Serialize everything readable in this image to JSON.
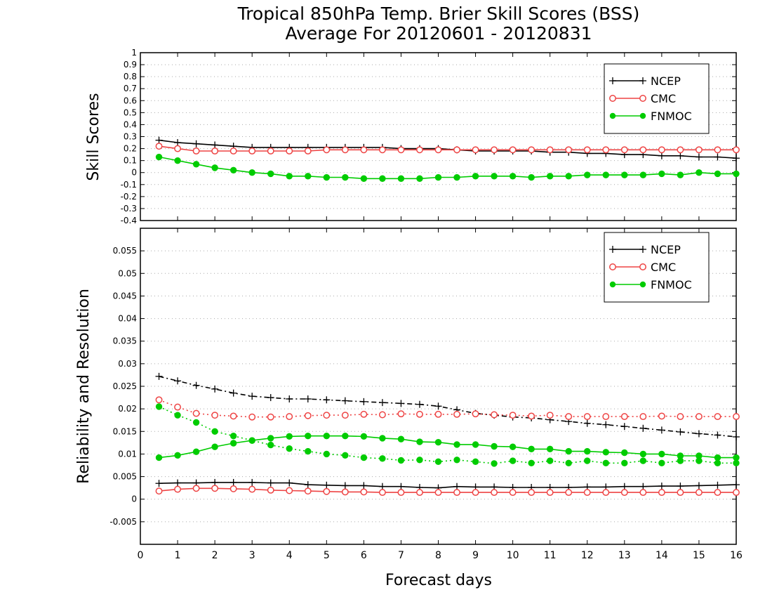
{
  "title_line1": "Tropical 850hPa Temp. Brier Skill Scores (BSS)",
  "title_line2": "Average For 20120601 - 20120831",
  "xlabel": "Forecast days",
  "chart_data": [
    {
      "type": "line",
      "ylabel": "Skill Scores",
      "ylim": [
        -0.4,
        1
      ],
      "yticks": [
        -0.4,
        -0.3,
        -0.2,
        -0.1,
        0,
        0.1,
        0.2,
        0.3,
        0.4,
        0.5,
        0.6,
        0.7,
        0.8,
        0.9,
        1
      ],
      "ytick_labels": [
        "-0.4",
        "-0.3",
        "-0.2",
        "-0.1",
        "0",
        "0.1",
        "0.2",
        "0.3",
        "0.4",
        "0.5",
        "0.6",
        "0.7",
        "0.8",
        "0.9",
        "1"
      ],
      "xlim": [
        0,
        16
      ],
      "grid": "horizontal-dotted",
      "legend_position": "top-right",
      "legend": [
        "NCEP",
        "CMC",
        "FNMOC"
      ],
      "x": [
        0.5,
        1,
        1.5,
        2,
        2.5,
        3,
        3.5,
        4,
        4.5,
        5,
        5.5,
        6,
        6.5,
        7,
        7.5,
        8,
        8.5,
        9,
        9.5,
        10,
        10.5,
        11,
        11.5,
        12,
        12.5,
        13,
        13.5,
        14,
        14.5,
        15,
        15.5,
        16
      ],
      "series": [
        {
          "name": "NCEP",
          "color": "#000000",
          "marker": "plus",
          "style": "solid",
          "values": [
            0.27,
            0.25,
            0.24,
            0.23,
            0.22,
            0.21,
            0.21,
            0.21,
            0.21,
            0.21,
            0.21,
            0.21,
            0.21,
            0.2,
            0.2,
            0.2,
            0.19,
            0.18,
            0.18,
            0.18,
            0.18,
            0.17,
            0.17,
            0.16,
            0.16,
            0.15,
            0.15,
            0.14,
            0.14,
            0.13,
            0.13,
            0.12
          ]
        },
        {
          "name": "CMC",
          "color": "#ee4444",
          "marker": "open-circle",
          "style": "solid",
          "values": [
            0.22,
            0.2,
            0.18,
            0.18,
            0.18,
            0.18,
            0.18,
            0.18,
            0.18,
            0.19,
            0.19,
            0.19,
            0.19,
            0.19,
            0.19,
            0.19,
            0.19,
            0.19,
            0.19,
            0.19,
            0.19,
            0.19,
            0.19,
            0.19,
            0.19,
            0.19,
            0.19,
            0.19,
            0.19,
            0.19,
            0.19,
            0.19
          ]
        },
        {
          "name": "FNMOC",
          "color": "#00cc00",
          "marker": "filled-circle",
          "style": "solid",
          "values": [
            0.13,
            0.1,
            0.07,
            0.04,
            0.02,
            0.0,
            -0.01,
            -0.03,
            -0.03,
            -0.04,
            -0.04,
            -0.05,
            -0.05,
            -0.05,
            -0.05,
            -0.04,
            -0.04,
            -0.03,
            -0.03,
            -0.03,
            -0.04,
            -0.03,
            -0.03,
            -0.02,
            -0.02,
            -0.02,
            -0.02,
            -0.01,
            -0.02,
            0.0,
            -0.01,
            -0.01
          ]
        }
      ]
    },
    {
      "type": "line",
      "ylabel": "Reliability and Resolution",
      "ylim": [
        -0.01,
        0.06
      ],
      "yticks": [
        -0.005,
        0,
        0.005,
        0.01,
        0.015,
        0.02,
        0.025,
        0.03,
        0.035,
        0.04,
        0.045,
        0.05,
        0.055
      ],
      "ytick_labels": [
        "-0.005",
        "0",
        "0.005",
        "0.01",
        "0.015",
        "0.02",
        "0.025",
        "0.03",
        "0.035",
        "0.04",
        "0.045",
        "0.05",
        "0.055"
      ],
      "xlim": [
        0,
        16
      ],
      "xticks": [
        0,
        1,
        2,
        3,
        4,
        5,
        6,
        7,
        8,
        9,
        10,
        11,
        12,
        13,
        14,
        15,
        16
      ],
      "xtick_labels": [
        "0",
        "1",
        "2",
        "3",
        "4",
        "5",
        "6",
        "7",
        "8",
        "9",
        "10",
        "11",
        "12",
        "13",
        "14",
        "15",
        "16"
      ],
      "grid": "horizontal-dotted",
      "legend_position": "top-right",
      "legend": [
        "NCEP",
        "CMC",
        "FNMOC"
      ],
      "x": [
        0.5,
        1,
        1.5,
        2,
        2.5,
        3,
        3.5,
        4,
        4.5,
        5,
        5.5,
        6,
        6.5,
        7,
        7.5,
        8,
        8.5,
        9,
        9.5,
        10,
        10.5,
        11,
        11.5,
        12,
        12.5,
        13,
        13.5,
        14,
        14.5,
        15,
        15.5,
        16
      ],
      "series": [
        {
          "name": "NCEP",
          "color": "#000000",
          "marker": "plus",
          "style": "dash-dot",
          "values": [
            0.0272,
            0.0262,
            0.0252,
            0.0244,
            0.0235,
            0.0228,
            0.0225,
            0.0222,
            0.0222,
            0.022,
            0.0218,
            0.0216,
            0.0214,
            0.0212,
            0.021,
            0.0206,
            0.0198,
            0.019,
            0.0186,
            0.0182,
            0.018,
            0.0176,
            0.0172,
            0.0168,
            0.0165,
            0.0161,
            0.0157,
            0.0153,
            0.0149,
            0.0145,
            0.0142,
            0.0138
          ]
        },
        {
          "name": "CMC",
          "color": "#ee4444",
          "marker": "open-circle",
          "style": "dotted",
          "values": [
            0.022,
            0.0204,
            0.019,
            0.0186,
            0.0184,
            0.0182,
            0.0182,
            0.0183,
            0.0185,
            0.0186,
            0.0186,
            0.0188,
            0.0187,
            0.0189,
            0.0188,
            0.0188,
            0.0188,
            0.0189,
            0.0187,
            0.0186,
            0.0184,
            0.0186,
            0.0183,
            0.0183,
            0.0183,
            0.0183,
            0.0183,
            0.0184,
            0.0183,
            0.0183,
            0.0183,
            0.0183
          ]
        },
        {
          "name": "FNMOC",
          "color": "#00cc00",
          "marker": "filled-circle",
          "style": "dotted",
          "values": [
            0.0205,
            0.0186,
            0.017,
            0.015,
            0.014,
            0.013,
            0.012,
            0.0112,
            0.0106,
            0.01,
            0.0097,
            0.0092,
            0.009,
            0.0086,
            0.0087,
            0.0083,
            0.0087,
            0.0083,
            0.0079,
            0.0085,
            0.008,
            0.0085,
            0.008,
            0.0085,
            0.008,
            0.008,
            0.0085,
            0.008,
            0.0085,
            0.0085,
            0.008,
            0.008
          ]
        },
        {
          "name": "NCEP",
          "color": "#000000",
          "marker": "plus",
          "style": "solid",
          "values": [
            0.0035,
            0.0036,
            0.0036,
            0.0037,
            0.0037,
            0.0037,
            0.0036,
            0.0036,
            0.0032,
            0.0031,
            0.003,
            0.003,
            0.0028,
            0.0028,
            0.0026,
            0.0025,
            0.0028,
            0.0027,
            0.0027,
            0.0026,
            0.0026,
            0.0026,
            0.0026,
            0.0027,
            0.0027,
            0.0028,
            0.0028,
            0.0029,
            0.0029,
            0.003,
            0.0031,
            0.0032
          ]
        },
        {
          "name": "CMC",
          "color": "#ee4444",
          "marker": "open-circle",
          "style": "solid",
          "values": [
            0.0018,
            0.0022,
            0.0024,
            0.0024,
            0.0023,
            0.0022,
            0.002,
            0.0019,
            0.0018,
            0.0017,
            0.0016,
            0.0016,
            0.0015,
            0.0015,
            0.0015,
            0.0015,
            0.0015,
            0.0015,
            0.0015,
            0.0015,
            0.0015,
            0.0015,
            0.0015,
            0.0015,
            0.0015,
            0.0015,
            0.0015,
            0.0015,
            0.0015,
            0.0015,
            0.0015,
            0.0015
          ]
        },
        {
          "name": "FNMOC",
          "color": "#00cc00",
          "marker": "filled-circle",
          "style": "solid",
          "values": [
            0.0092,
            0.0097,
            0.0105,
            0.0116,
            0.0124,
            0.013,
            0.0135,
            0.0139,
            0.014,
            0.014,
            0.014,
            0.0139,
            0.0135,
            0.0133,
            0.0127,
            0.0126,
            0.0121,
            0.0121,
            0.0117,
            0.0116,
            0.0111,
            0.0111,
            0.0106,
            0.0106,
            0.0104,
            0.0103,
            0.01,
            0.01,
            0.0096,
            0.0096,
            0.0092,
            0.0092
          ]
        }
      ]
    }
  ]
}
